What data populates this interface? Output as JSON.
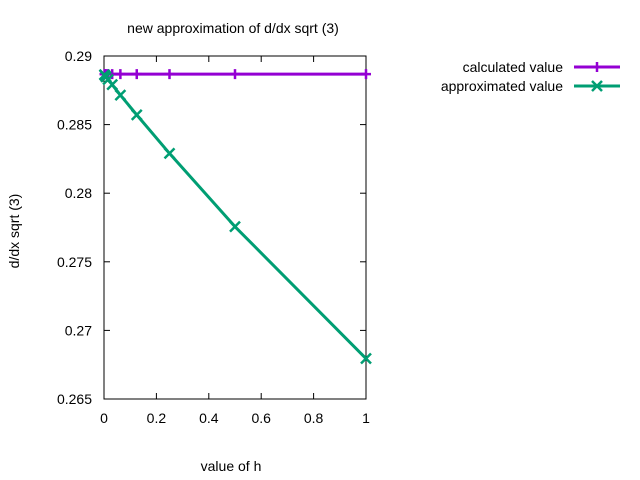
{
  "chart_data": {
    "type": "line",
    "title": "new approximation of d/dx sqrt (3)",
    "xlabel": "value of h",
    "ylabel": "d/dx sqrt (3)",
    "xlim": [
      0,
      1
    ],
    "ylim": [
      0.265,
      0.29
    ],
    "x_ticks": [
      "0",
      "0.2",
      "0.4",
      "0.6",
      "0.8",
      "1"
    ],
    "y_ticks": [
      "0.265",
      "0.27",
      "0.275",
      "0.28",
      "0.285",
      "0.29"
    ],
    "grid": false,
    "legend_position": "top-right",
    "series": [
      {
        "name": "calculated value",
        "color": "#9400d3",
        "marker": "plus",
        "x": [
          1,
          0.5,
          0.25,
          0.125,
          0.0625,
          0.03125,
          0.015625,
          0.0078125,
          0.00390625,
          0.001953125
        ],
        "y": [
          0.28868,
          0.28868,
          0.28868,
          0.28868,
          0.28868,
          0.28868,
          0.28868,
          0.28868,
          0.28868,
          0.28868
        ]
      },
      {
        "name": "approximated value",
        "color": "#009e73",
        "marker": "cross",
        "x": [
          1,
          0.5,
          0.25,
          0.125,
          0.0625,
          0.03125,
          0.015625,
          0.0078125,
          0.00390625,
          0.001953125
        ],
        "y": [
          0.26795,
          0.27756,
          0.2829,
          0.28571,
          0.28715,
          0.28791,
          0.28829,
          0.28848,
          0.28858,
          0.28863
        ]
      }
    ]
  }
}
